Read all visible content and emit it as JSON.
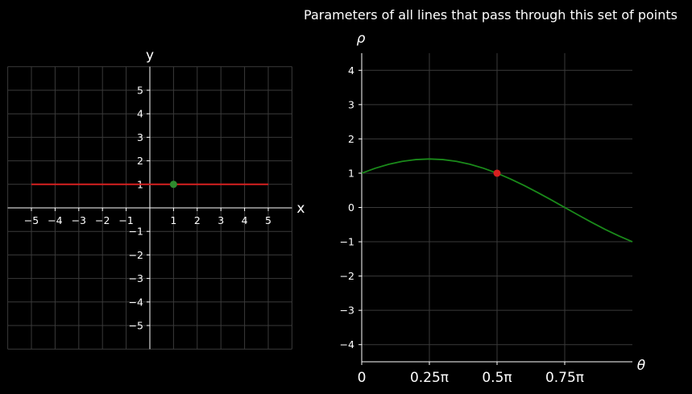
{
  "chart_data": [
    {
      "type": "line",
      "panel": "cartesian",
      "xlabel": "x",
      "ylabel": "y",
      "xlim": [
        -6,
        6
      ],
      "ylim": [
        -6,
        6
      ],
      "xticks": [
        -5,
        -4,
        -3,
        -2,
        -1,
        1,
        2,
        3,
        4,
        5
      ],
      "yticks": [
        -5,
        -4,
        -3,
        -2,
        -1,
        1,
        2,
        3,
        4,
        5
      ],
      "xtick_labels": [
        "−5",
        "−4",
        "−3",
        "−2",
        "−1",
        "1",
        "2",
        "3",
        "4",
        "5"
      ],
      "ytick_labels": [
        "−5",
        "−4",
        "−3",
        "−2",
        "−1",
        "1",
        "2",
        "3",
        "4",
        "5"
      ],
      "grid": true,
      "series": [
        {
          "kind": "line",
          "color": "#d62020",
          "x": [
            -5,
            5
          ],
          "y": [
            1,
            1
          ]
        },
        {
          "kind": "point",
          "color": "#2e8b2e",
          "x": [
            1
          ],
          "y": [
            1
          ]
        }
      ]
    },
    {
      "type": "line",
      "panel": "hough",
      "title": "Parameters of all lines that pass through this set of points",
      "xlabel": "θ",
      "ylabel": "ρ",
      "xlim": [
        0,
        1
      ],
      "ylim": [
        -4.5,
        4.5
      ],
      "xticks": [
        0,
        0.25,
        0.5,
        0.75
      ],
      "xtick_labels": [
        "0",
        "0.25π",
        "0.5π",
        "0.75π"
      ],
      "yticks": [
        -4,
        -3,
        -2,
        -1,
        0,
        1,
        2,
        3,
        4
      ],
      "ytick_labels": [
        "−4",
        "−3",
        "−2",
        "−1",
        "0",
        "1",
        "2",
        "3",
        "4"
      ],
      "grid": true,
      "series": [
        {
          "kind": "curve",
          "color": "#1a8a1a",
          "x": [
            0,
            0.05,
            0.1,
            0.15,
            0.2,
            0.25,
            0.3,
            0.35,
            0.4,
            0.45,
            0.5,
            0.55,
            0.6,
            0.65,
            0.7,
            0.75,
            0.8,
            0.85,
            0.9,
            0.95,
            1.0
          ],
          "y": [
            1.0,
            1.144,
            1.26,
            1.345,
            1.397,
            1.414,
            1.397,
            1.345,
            1.26,
            1.144,
            1.0,
            0.831,
            0.642,
            0.437,
            0.221,
            0.0,
            -0.221,
            -0.437,
            -0.642,
            -0.831,
            -1.0
          ]
        },
        {
          "kind": "point",
          "color": "#d62020",
          "x": [
            0.5
          ],
          "y": [
            1
          ]
        }
      ]
    }
  ]
}
